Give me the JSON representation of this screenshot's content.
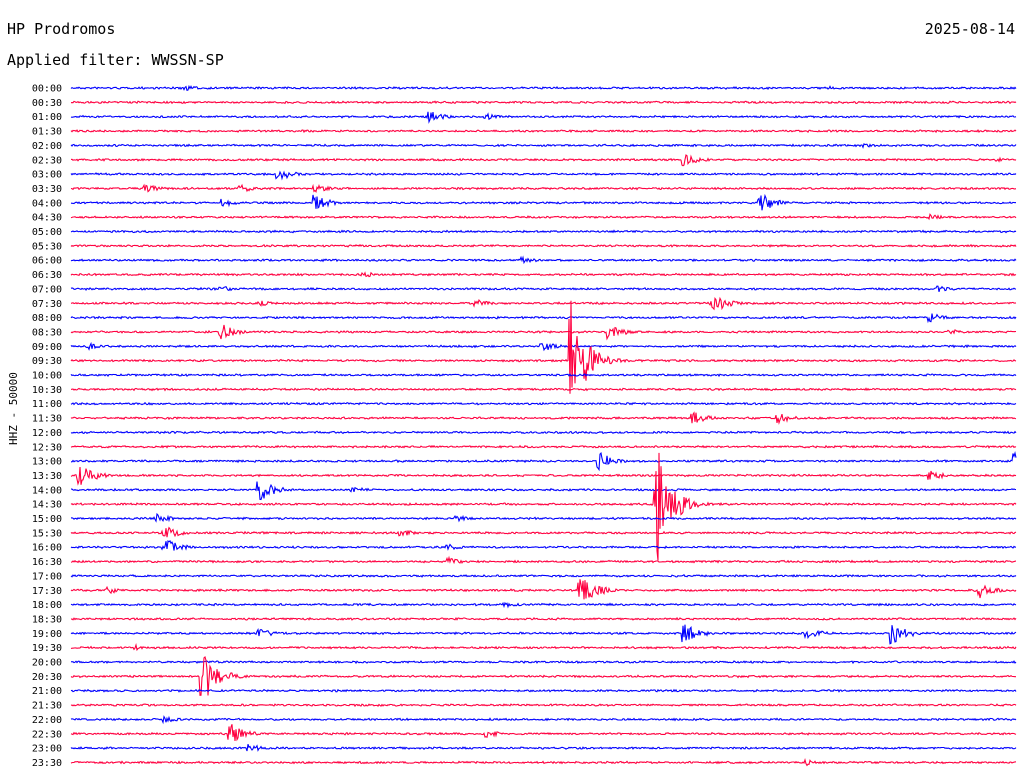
{
  "header": {
    "station": "HP Prodromos",
    "date": "2025-08-14",
    "filter_label": "Applied filter: WWSSN-SP"
  },
  "colors": {
    "odd": "#0000ff",
    "even": "#ff0040"
  },
  "chart_data": {
    "type": "line",
    "title": "HP Prodromos",
    "ylabel": "HHZ - 50000",
    "categories": [
      "00:00",
      "00:30",
      "01:00",
      "01:30",
      "02:00",
      "02:30",
      "03:00",
      "03:30",
      "04:00",
      "04:30",
      "05:00",
      "05:30",
      "06:00",
      "06:30",
      "07:00",
      "07:30",
      "08:00",
      "08:30",
      "09:00",
      "09:30",
      "10:00",
      "10:30",
      "11:00",
      "11:30",
      "12:00",
      "12:30",
      "13:00",
      "13:30",
      "14:00",
      "14:30",
      "15:00",
      "15:30",
      "16:00",
      "16:30",
      "17:00",
      "17:30",
      "18:00",
      "18:30",
      "19:00",
      "19:30",
      "20:00",
      "20:30",
      "21:00",
      "21:30",
      "22:00",
      "22:30",
      "23:00",
      "23:30"
    ],
    "events": [
      {
        "trace": "00:00",
        "pos": 0.12,
        "amp": 3
      },
      {
        "trace": "00:00",
        "pos": 0.8,
        "amp": 2
      },
      {
        "trace": "01:00",
        "pos": 0.38,
        "amp": 6
      },
      {
        "trace": "01:00",
        "pos": 0.44,
        "amp": 3
      },
      {
        "trace": "02:00",
        "pos": 0.84,
        "amp": 3
      },
      {
        "trace": "02:30",
        "pos": 0.65,
        "amp": 6
      },
      {
        "trace": "02:30",
        "pos": 0.98,
        "amp": 2
      },
      {
        "trace": "03:00",
        "pos": 0.22,
        "amp": 7
      },
      {
        "trace": "03:30",
        "pos": 0.08,
        "amp": 4
      },
      {
        "trace": "03:30",
        "pos": 0.18,
        "amp": 4
      },
      {
        "trace": "03:30",
        "pos": 0.26,
        "amp": 4
      },
      {
        "trace": "04:00",
        "pos": 0.26,
        "amp": 8
      },
      {
        "trace": "04:00",
        "pos": 0.16,
        "amp": 4
      },
      {
        "trace": "04:00",
        "pos": 0.73,
        "amp": 10
      },
      {
        "trace": "04:30",
        "pos": 0.91,
        "amp": 3
      },
      {
        "trace": "06:00",
        "pos": 0.48,
        "amp": 3
      },
      {
        "trace": "06:30",
        "pos": 0.31,
        "amp": 3
      },
      {
        "trace": "07:00",
        "pos": 0.16,
        "amp": 3
      },
      {
        "trace": "07:00",
        "pos": 0.92,
        "amp": 3
      },
      {
        "trace": "07:30",
        "pos": 0.2,
        "amp": 3
      },
      {
        "trace": "07:30",
        "pos": 0.43,
        "amp": 4
      },
      {
        "trace": "07:30",
        "pos": 0.68,
        "amp": 10
      },
      {
        "trace": "08:00",
        "pos": 0.91,
        "amp": 5
      },
      {
        "trace": "08:30",
        "pos": 0.16,
        "amp": 8
      },
      {
        "trace": "08:30",
        "pos": 0.57,
        "amp": 8
      },
      {
        "trace": "08:30",
        "pos": 0.93,
        "amp": 3
      },
      {
        "trace": "09:00",
        "pos": 0.02,
        "amp": 3
      },
      {
        "trace": "09:00",
        "pos": 0.5,
        "amp": 5
      },
      {
        "trace": "09:30",
        "pos": 0.53,
        "amp": 60
      },
      {
        "trace": "11:30",
        "pos": 0.66,
        "amp": 6
      },
      {
        "trace": "11:30",
        "pos": 0.75,
        "amp": 5
      },
      {
        "trace": "13:00",
        "pos": 0.56,
        "amp": 10
      },
      {
        "trace": "13:00",
        "pos": 1.0,
        "amp": 10
      },
      {
        "trace": "13:30",
        "pos": 0.01,
        "amp": 12
      },
      {
        "trace": "13:30",
        "pos": 0.91,
        "amp": 5
      },
      {
        "trace": "14:00",
        "pos": 0.2,
        "amp": 12
      },
      {
        "trace": "14:00",
        "pos": 0.3,
        "amp": 3
      },
      {
        "trace": "14:30",
        "pos": 0.62,
        "amp": 65
      },
      {
        "trace": "15:00",
        "pos": 0.09,
        "amp": 5
      },
      {
        "trace": "15:00",
        "pos": 0.41,
        "amp": 3
      },
      {
        "trace": "15:30",
        "pos": 0.1,
        "amp": 7
      },
      {
        "trace": "15:30",
        "pos": 0.35,
        "amp": 4
      },
      {
        "trace": "16:00",
        "pos": 0.1,
        "amp": 9
      },
      {
        "trace": "16:00",
        "pos": 0.4,
        "amp": 3
      },
      {
        "trace": "16:30",
        "pos": 0.4,
        "amp": 4
      },
      {
        "trace": "17:30",
        "pos": 0.04,
        "amp": 4
      },
      {
        "trace": "17:30",
        "pos": 0.54,
        "amp": 18
      },
      {
        "trace": "17:30",
        "pos": 0.96,
        "amp": 9
      },
      {
        "trace": "18:00",
        "pos": 0.46,
        "amp": 3
      },
      {
        "trace": "19:00",
        "pos": 0.2,
        "amp": 5
      },
      {
        "trace": "19:00",
        "pos": 0.65,
        "amp": 10
      },
      {
        "trace": "19:00",
        "pos": 0.78,
        "amp": 6
      },
      {
        "trace": "19:00",
        "pos": 0.87,
        "amp": 12
      },
      {
        "trace": "19:30",
        "pos": 0.07,
        "amp": 3
      },
      {
        "trace": "20:30",
        "pos": 0.14,
        "amp": 28
      },
      {
        "trace": "22:00",
        "pos": 0.1,
        "amp": 3
      },
      {
        "trace": "22:30",
        "pos": 0.17,
        "amp": 10
      },
      {
        "trace": "22:30",
        "pos": 0.44,
        "amp": 4
      },
      {
        "trace": "23:00",
        "pos": 0.19,
        "amp": 4
      },
      {
        "trace": "23:30",
        "pos": 0.78,
        "amp": 3
      }
    ]
  }
}
